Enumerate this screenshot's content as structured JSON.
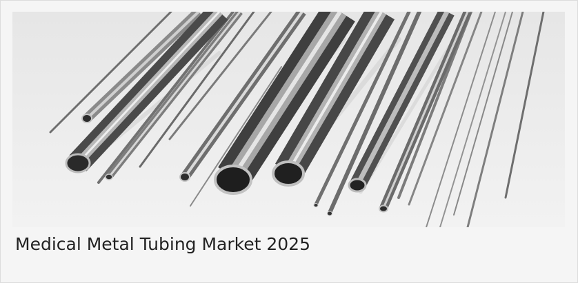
{
  "card": {
    "title": "Medical Metal Tubing Market 2025"
  },
  "hero": {
    "subject": "metal-tubes-photo"
  }
}
